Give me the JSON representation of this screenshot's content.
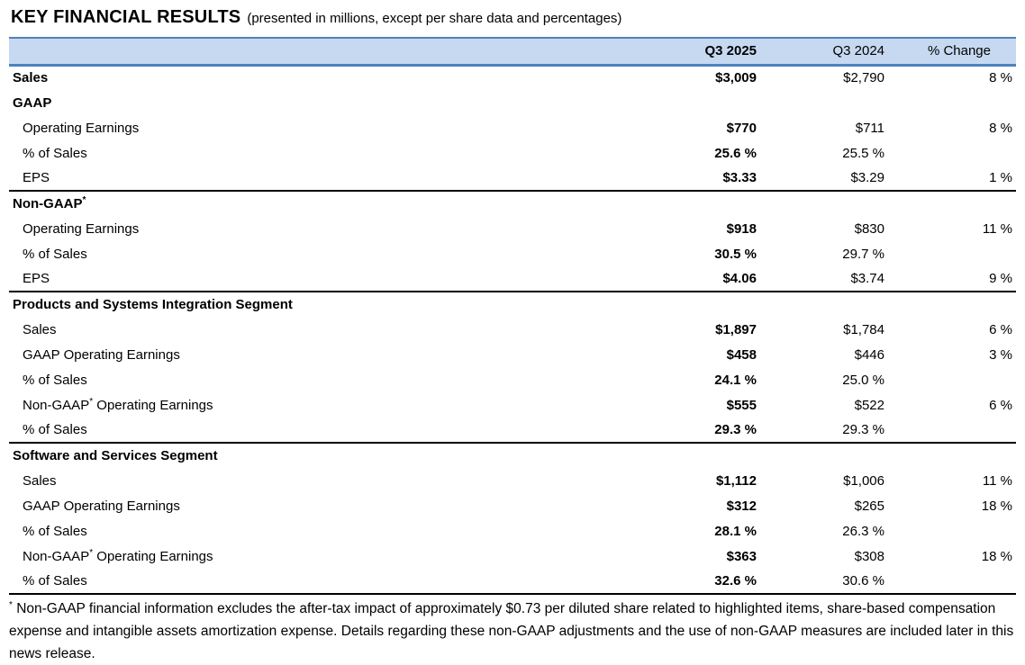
{
  "title": {
    "main": "KEY FINANCIAL RESULTS",
    "subtitle": "(presented in millions, except per share data and percentages)"
  },
  "colors": {
    "header_bg": "#c6d9f1",
    "header_border": "#4f81bd",
    "section_border": "#000000"
  },
  "table": {
    "columns": {
      "label": "",
      "q3_2025": "Q3 2025",
      "q3_2024": "Q3 2024",
      "pct_change": "% Change"
    },
    "rows": [
      {
        "label": "Sales",
        "bold_label": true,
        "indent": false,
        "q3_2025": "$3,009",
        "q3_2024": "$2,790",
        "pct_change": "8 %"
      },
      {
        "label": "GAAP",
        "bold_label": true,
        "indent": false,
        "q3_2025": "",
        "q3_2024": "",
        "pct_change": ""
      },
      {
        "label": "Operating Earnings",
        "bold_label": false,
        "indent": true,
        "q3_2025": "$770",
        "q3_2024": "$711",
        "pct_change": "8 %"
      },
      {
        "label": "% of Sales",
        "bold_label": false,
        "indent": true,
        "q3_2025": "25.6 %",
        "q3_2024": "25.5 %",
        "pct_change": ""
      },
      {
        "label": "EPS",
        "bold_label": false,
        "indent": true,
        "q3_2025": "$3.33",
        "q3_2024": "$3.29",
        "pct_change": "1 %",
        "section_end": true
      },
      {
        "label": "Non-GAAP",
        "label_sup": "*",
        "bold_label": true,
        "indent": false,
        "q3_2025": "",
        "q3_2024": "",
        "pct_change": ""
      },
      {
        "label": "Operating Earnings",
        "bold_label": false,
        "indent": true,
        "q3_2025": "$918",
        "q3_2024": "$830",
        "pct_change": "11 %"
      },
      {
        "label": "% of Sales",
        "bold_label": false,
        "indent": true,
        "q3_2025": "30.5 %",
        "q3_2024": "29.7 %",
        "pct_change": ""
      },
      {
        "label": "EPS",
        "bold_label": false,
        "indent": true,
        "q3_2025": "$4.06",
        "q3_2024": "$3.74",
        "pct_change": "9 %",
        "section_end": true
      },
      {
        "label": "Products and Systems Integration Segment",
        "bold_label": true,
        "indent": false,
        "q3_2025": "",
        "q3_2024": "",
        "pct_change": ""
      },
      {
        "label": "Sales",
        "bold_label": false,
        "indent": true,
        "q3_2025": "$1,897",
        "q3_2024": "$1,784",
        "pct_change": "6 %"
      },
      {
        "label": "GAAP Operating Earnings",
        "bold_label": false,
        "indent": true,
        "q3_2025": "$458",
        "q3_2024": "$446",
        "pct_change": "3 %"
      },
      {
        "label": "% of Sales",
        "bold_label": false,
        "indent": true,
        "q3_2025": "24.1 %",
        "q3_2024": "25.0 %",
        "pct_change": ""
      },
      {
        "label": "Non-GAAP",
        "label_sup": "*",
        "label_after": " Operating Earnings",
        "bold_label": false,
        "indent": true,
        "q3_2025": "$555",
        "q3_2024": "$522",
        "pct_change": "6 %"
      },
      {
        "label": "% of Sales",
        "bold_label": false,
        "indent": true,
        "q3_2025": "29.3 %",
        "q3_2024": "29.3 %",
        "pct_change": "",
        "section_end": true
      },
      {
        "label": "Software and Services Segment",
        "bold_label": true,
        "indent": false,
        "q3_2025": "",
        "q3_2024": "",
        "pct_change": ""
      },
      {
        "label": "Sales",
        "bold_label": false,
        "indent": true,
        "q3_2025": "$1,112",
        "q3_2024": "$1,006",
        "pct_change": "11 %"
      },
      {
        "label": "GAAP Operating Earnings",
        "bold_label": false,
        "indent": true,
        "q3_2025": "$312",
        "q3_2024": "$265",
        "pct_change": "18 %"
      },
      {
        "label": "% of Sales",
        "bold_label": false,
        "indent": true,
        "q3_2025": "28.1 %",
        "q3_2024": "26.3 %",
        "pct_change": ""
      },
      {
        "label": "Non-GAAP",
        "label_sup": "*",
        "label_after": " Operating Earnings",
        "bold_label": false,
        "indent": true,
        "q3_2025": "$363",
        "q3_2024": "$308",
        "pct_change": "18 %"
      },
      {
        "label": "% of Sales",
        "bold_label": false,
        "indent": true,
        "q3_2025": "32.6 %",
        "q3_2024": "30.6 %",
        "pct_change": "",
        "section_end": true
      }
    ]
  },
  "footnote": {
    "sup": "*",
    "text": " Non-GAAP financial information excludes the after-tax impact of approximately $0.73 per diluted share related to highlighted items, share-based compensation expense and intangible assets amortization expense. Details regarding these non-GAAP adjustments and the use of non-GAAP measures are included later in this news release."
  }
}
